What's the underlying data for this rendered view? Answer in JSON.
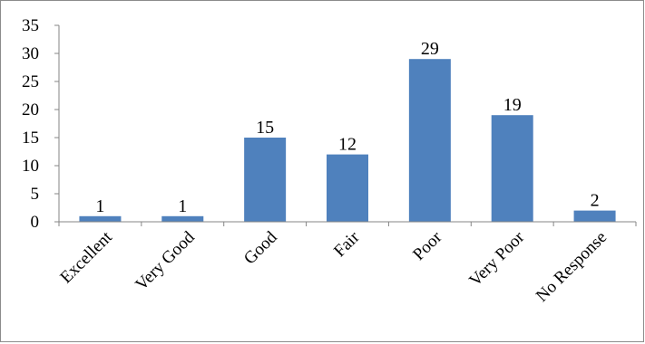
{
  "chart_data": {
    "type": "bar",
    "categories": [
      "Excellent",
      "Very Good",
      "Good",
      "Fair",
      "Poor",
      "Very Poor",
      "No Response"
    ],
    "values": [
      1,
      1,
      15,
      12,
      29,
      19,
      2
    ],
    "title": "",
    "xlabel": "",
    "ylabel": "",
    "ylim": [
      0,
      35
    ],
    "yticks": [
      0,
      5,
      10,
      15,
      20,
      25,
      30,
      35
    ],
    "grid": false,
    "legend": "none",
    "data_labels": true,
    "bar_color": "#4f81bd",
    "axis_color": "#868686"
  }
}
